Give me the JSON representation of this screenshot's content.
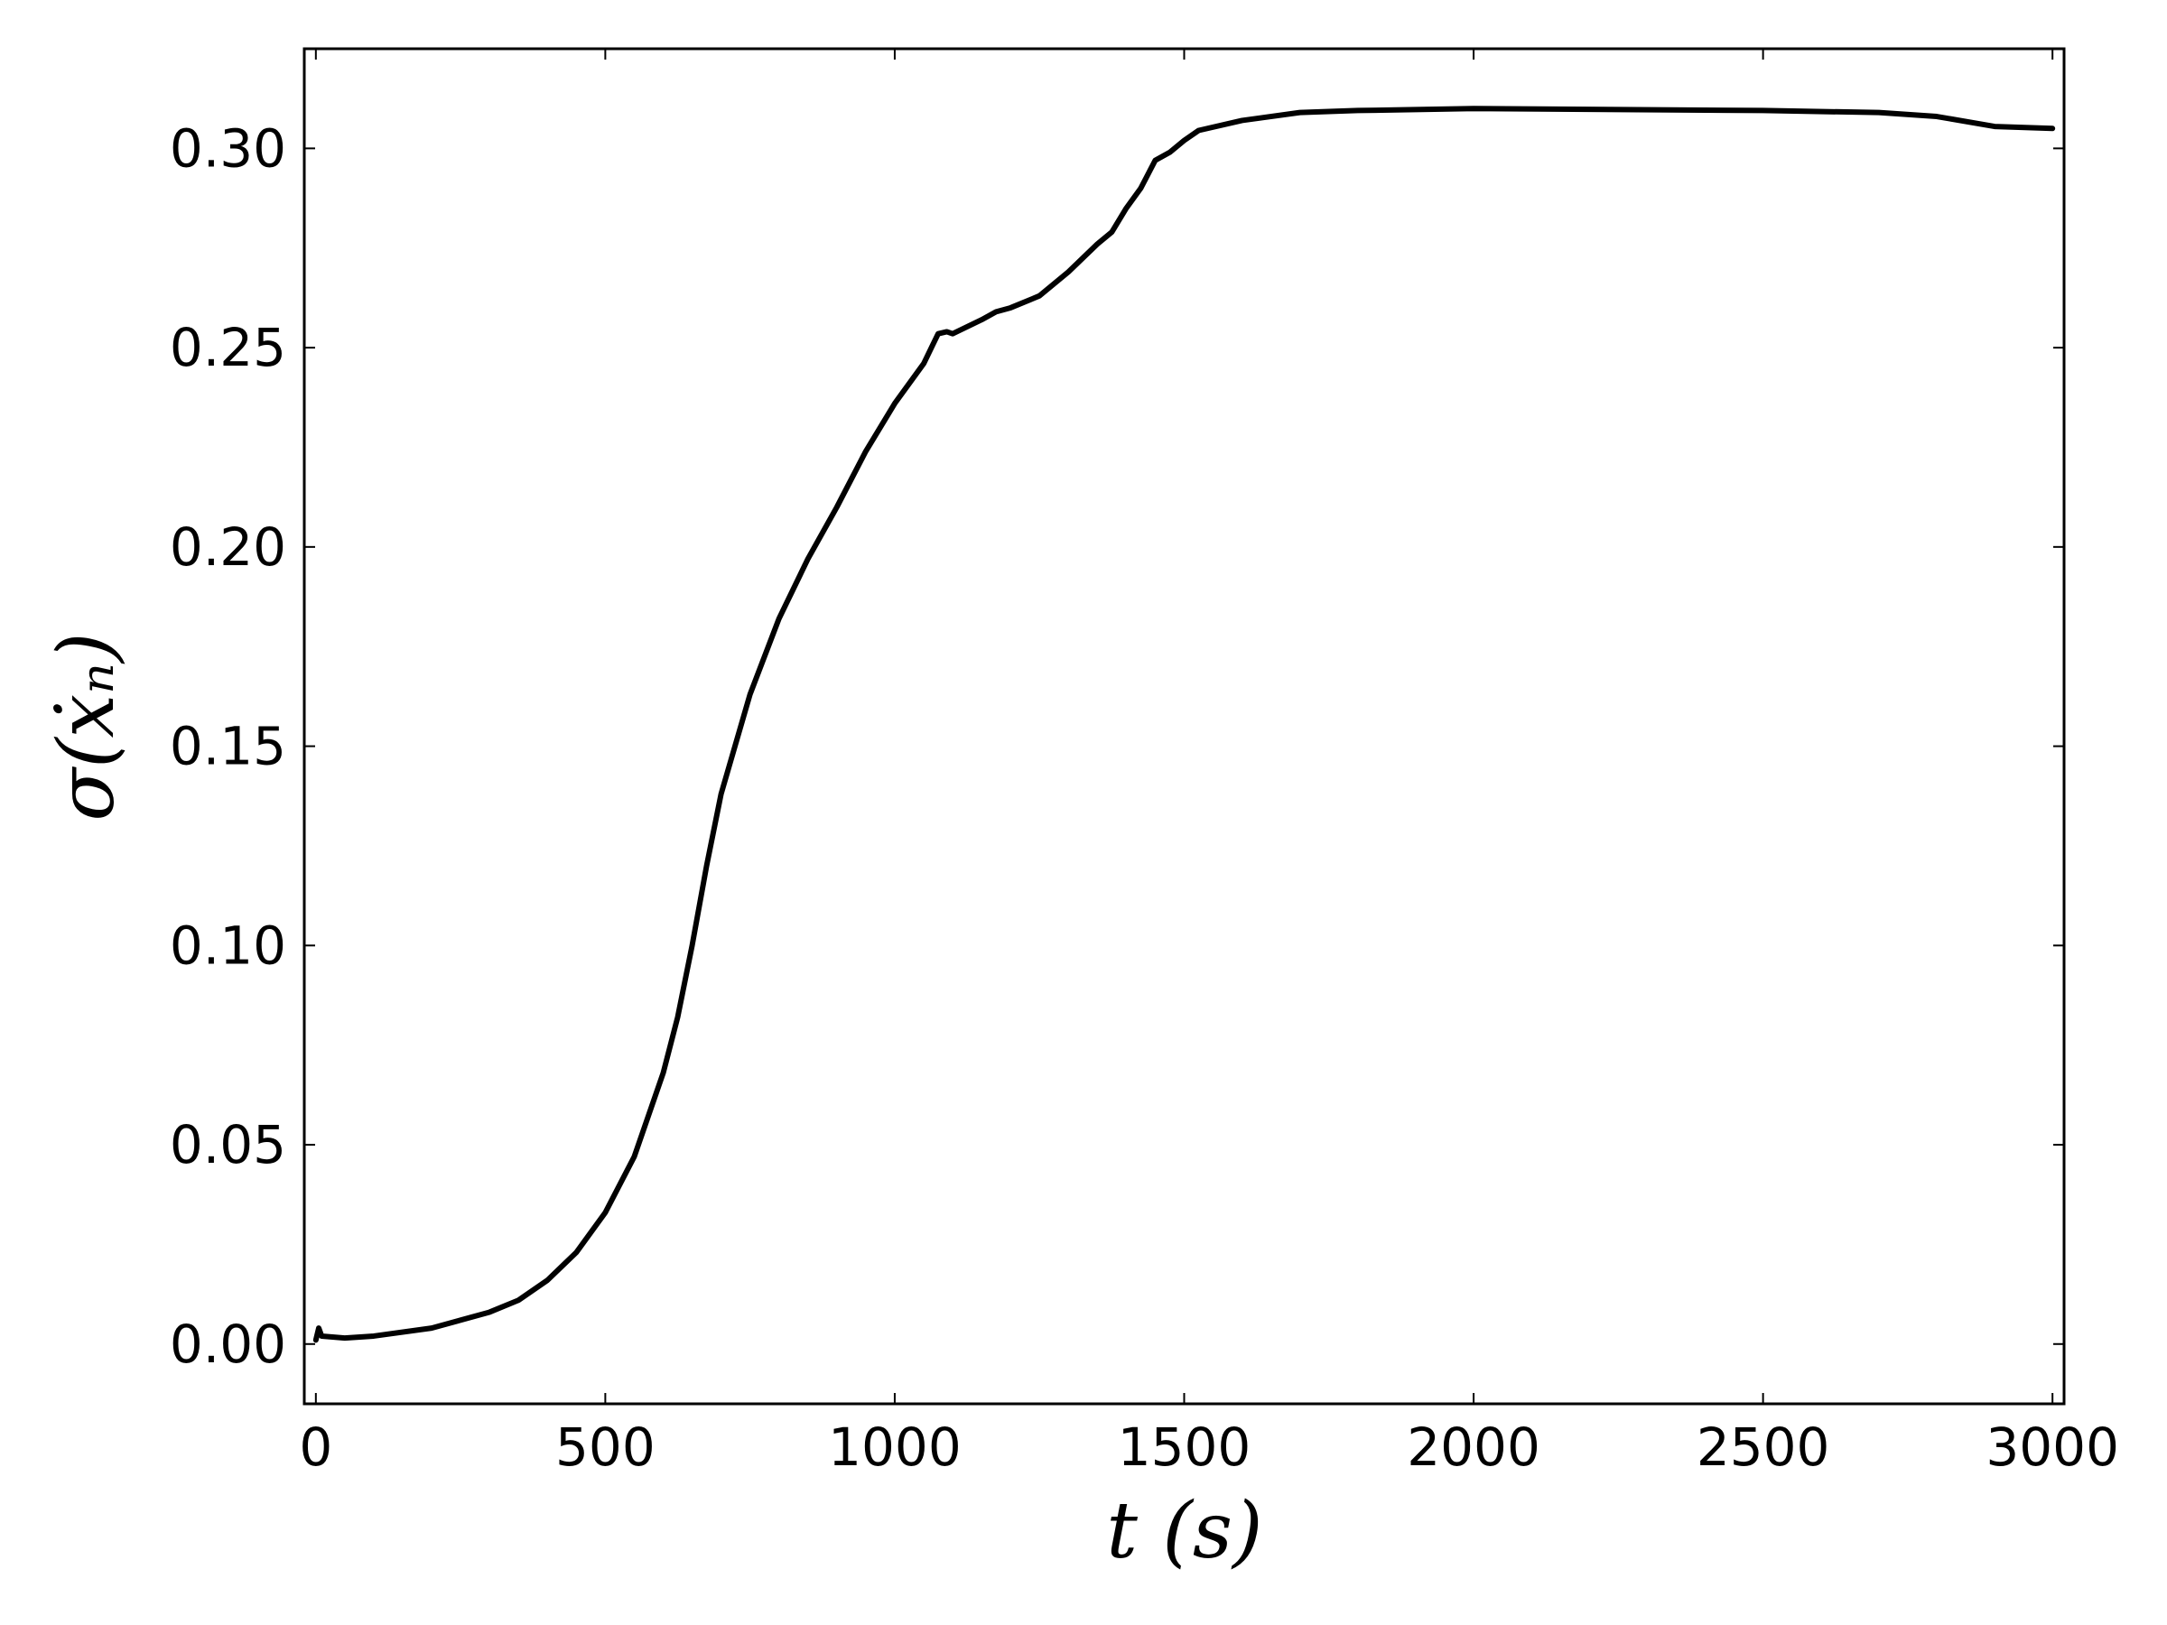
{
  "chart_data": {
    "type": "line",
    "x_label": "t (s)",
    "y_label": "σ(ẋₙ)",
    "color": "#000000",
    "x": [
      0,
      5,
      10,
      50,
      100,
      200,
      300,
      350,
      400,
      450,
      500,
      550,
      600,
      625,
      650,
      675,
      700,
      750,
      800,
      850,
      900,
      950,
      1000,
      1050,
      1075,
      1090,
      1100,
      1150,
      1175,
      1200,
      1250,
      1300,
      1350,
      1375,
      1400,
      1425,
      1450,
      1475,
      1500,
      1525,
      1600,
      1700,
      1800,
      2000,
      2200,
      2500,
      2700,
      2800,
      2900,
      3000
    ],
    "values": [
      0.001,
      0.004,
      0.002,
      0.0015,
      0.002,
      0.004,
      0.008,
      0.011,
      0.016,
      0.023,
      0.033,
      0.047,
      0.068,
      0.082,
      0.1,
      0.12,
      0.138,
      0.163,
      0.182,
      0.197,
      0.21,
      0.224,
      0.236,
      0.246,
      0.2535,
      0.254,
      0.2535,
      0.257,
      0.259,
      0.26,
      0.263,
      0.269,
      0.276,
      0.279,
      0.285,
      0.29,
      0.297,
      0.299,
      0.302,
      0.3045,
      0.307,
      0.309,
      0.3095,
      0.31,
      0.3098,
      0.3095,
      0.309,
      0.308,
      0.3055,
      0.305
    ],
    "xlim": [
      -20,
      3020
    ],
    "ylim": [
      -0.015,
      0.325
    ],
    "xticks": [
      0,
      500,
      1000,
      1500,
      2000,
      2500,
      3000
    ],
    "yticks": [
      {
        "value": 0,
        "label": "0.00"
      },
      {
        "value": 0.05,
        "label": "0.05"
      },
      {
        "value": 0.1,
        "label": "0.10"
      },
      {
        "value": 0.15,
        "label": "0.15"
      },
      {
        "value": 0.2,
        "label": "0.20"
      },
      {
        "value": 0.25,
        "label": "0.25"
      },
      {
        "value": 0.3,
        "label": "0.30"
      }
    ]
  }
}
